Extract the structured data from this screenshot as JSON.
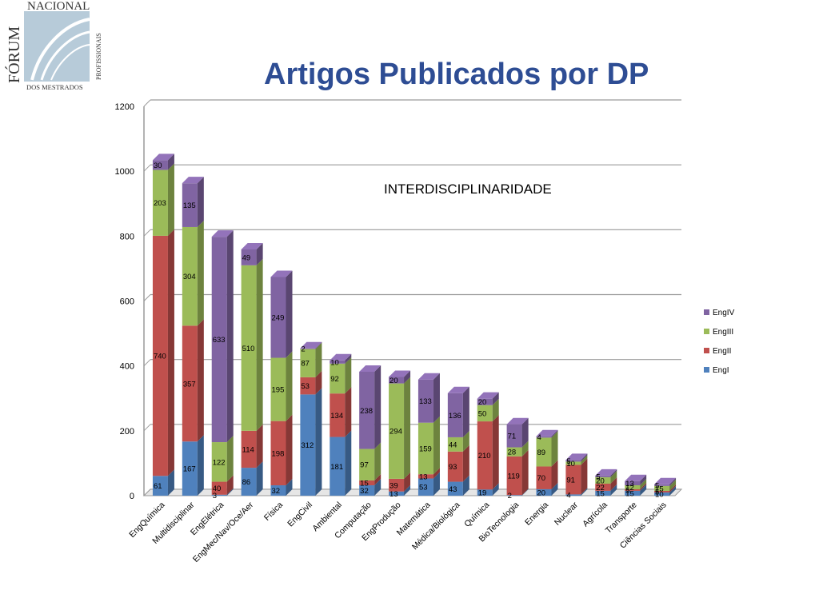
{
  "slide": {
    "title": "Artigos Publicados por DP",
    "logo": {
      "top_text": "NACIONAL",
      "side_text": "FÓRUM",
      "vertical_text": "PROFISSIONAIS",
      "bottom_text": "DOS MESTRADOS"
    }
  },
  "chart_data": {
    "type": "bar",
    "stacked": true,
    "title": "",
    "annotation": "INTERDISCIPLINARIDADE",
    "xlabel": "",
    "ylabel": "",
    "ylim": [
      0,
      1200
    ],
    "yticks": [
      0,
      200,
      400,
      600,
      800,
      1000,
      1200
    ],
    "grid": true,
    "legend_position": "right",
    "categories": [
      "EngQuímica",
      "Multidisciplinar",
      "EngElétrica",
      "EngMec/Nav/Oce/Aer",
      "Física",
      "EngCivil",
      "Ambiental",
      "Computação",
      "EngProdução",
      "Matemática",
      "Médica/Biológica",
      "Química",
      "BioTecnologia",
      "Energia",
      "Nuclear",
      "Agrícola",
      "Transporte",
      "Ciências Sociais"
    ],
    "series": [
      {
        "name": "EngI",
        "color": "#4f81bd",
        "values": [
          61,
          167,
          3,
          86,
          32,
          312,
          181,
          32,
          13,
          53,
          43,
          19,
          2,
          20,
          4,
          15,
          15,
          10
        ]
      },
      {
        "name": "EngII",
        "color": "#c0504d",
        "values": [
          740,
          357,
          40,
          114,
          198,
          53,
          134,
          15,
          39,
          13,
          93,
          210,
          119,
          70,
          91,
          22,
          5,
          5
        ]
      },
      {
        "name": "EngIII",
        "color": "#9bbb59",
        "values": [
          203,
          304,
          122,
          510,
          195,
          87,
          92,
          97,
          294,
          159,
          44,
          50,
          28,
          89,
          10,
          20,
          12,
          15
        ]
      },
      {
        "name": "EngIV",
        "color": "#8064a2",
        "values": [
          30,
          135,
          633,
          49,
          249,
          2,
          10,
          238,
          20,
          133,
          136,
          20,
          71,
          4,
          5,
          5,
          13,
          5
        ]
      }
    ],
    "legend_order": [
      "EngIV",
      "EngIII",
      "EngII",
      "EngI"
    ]
  }
}
